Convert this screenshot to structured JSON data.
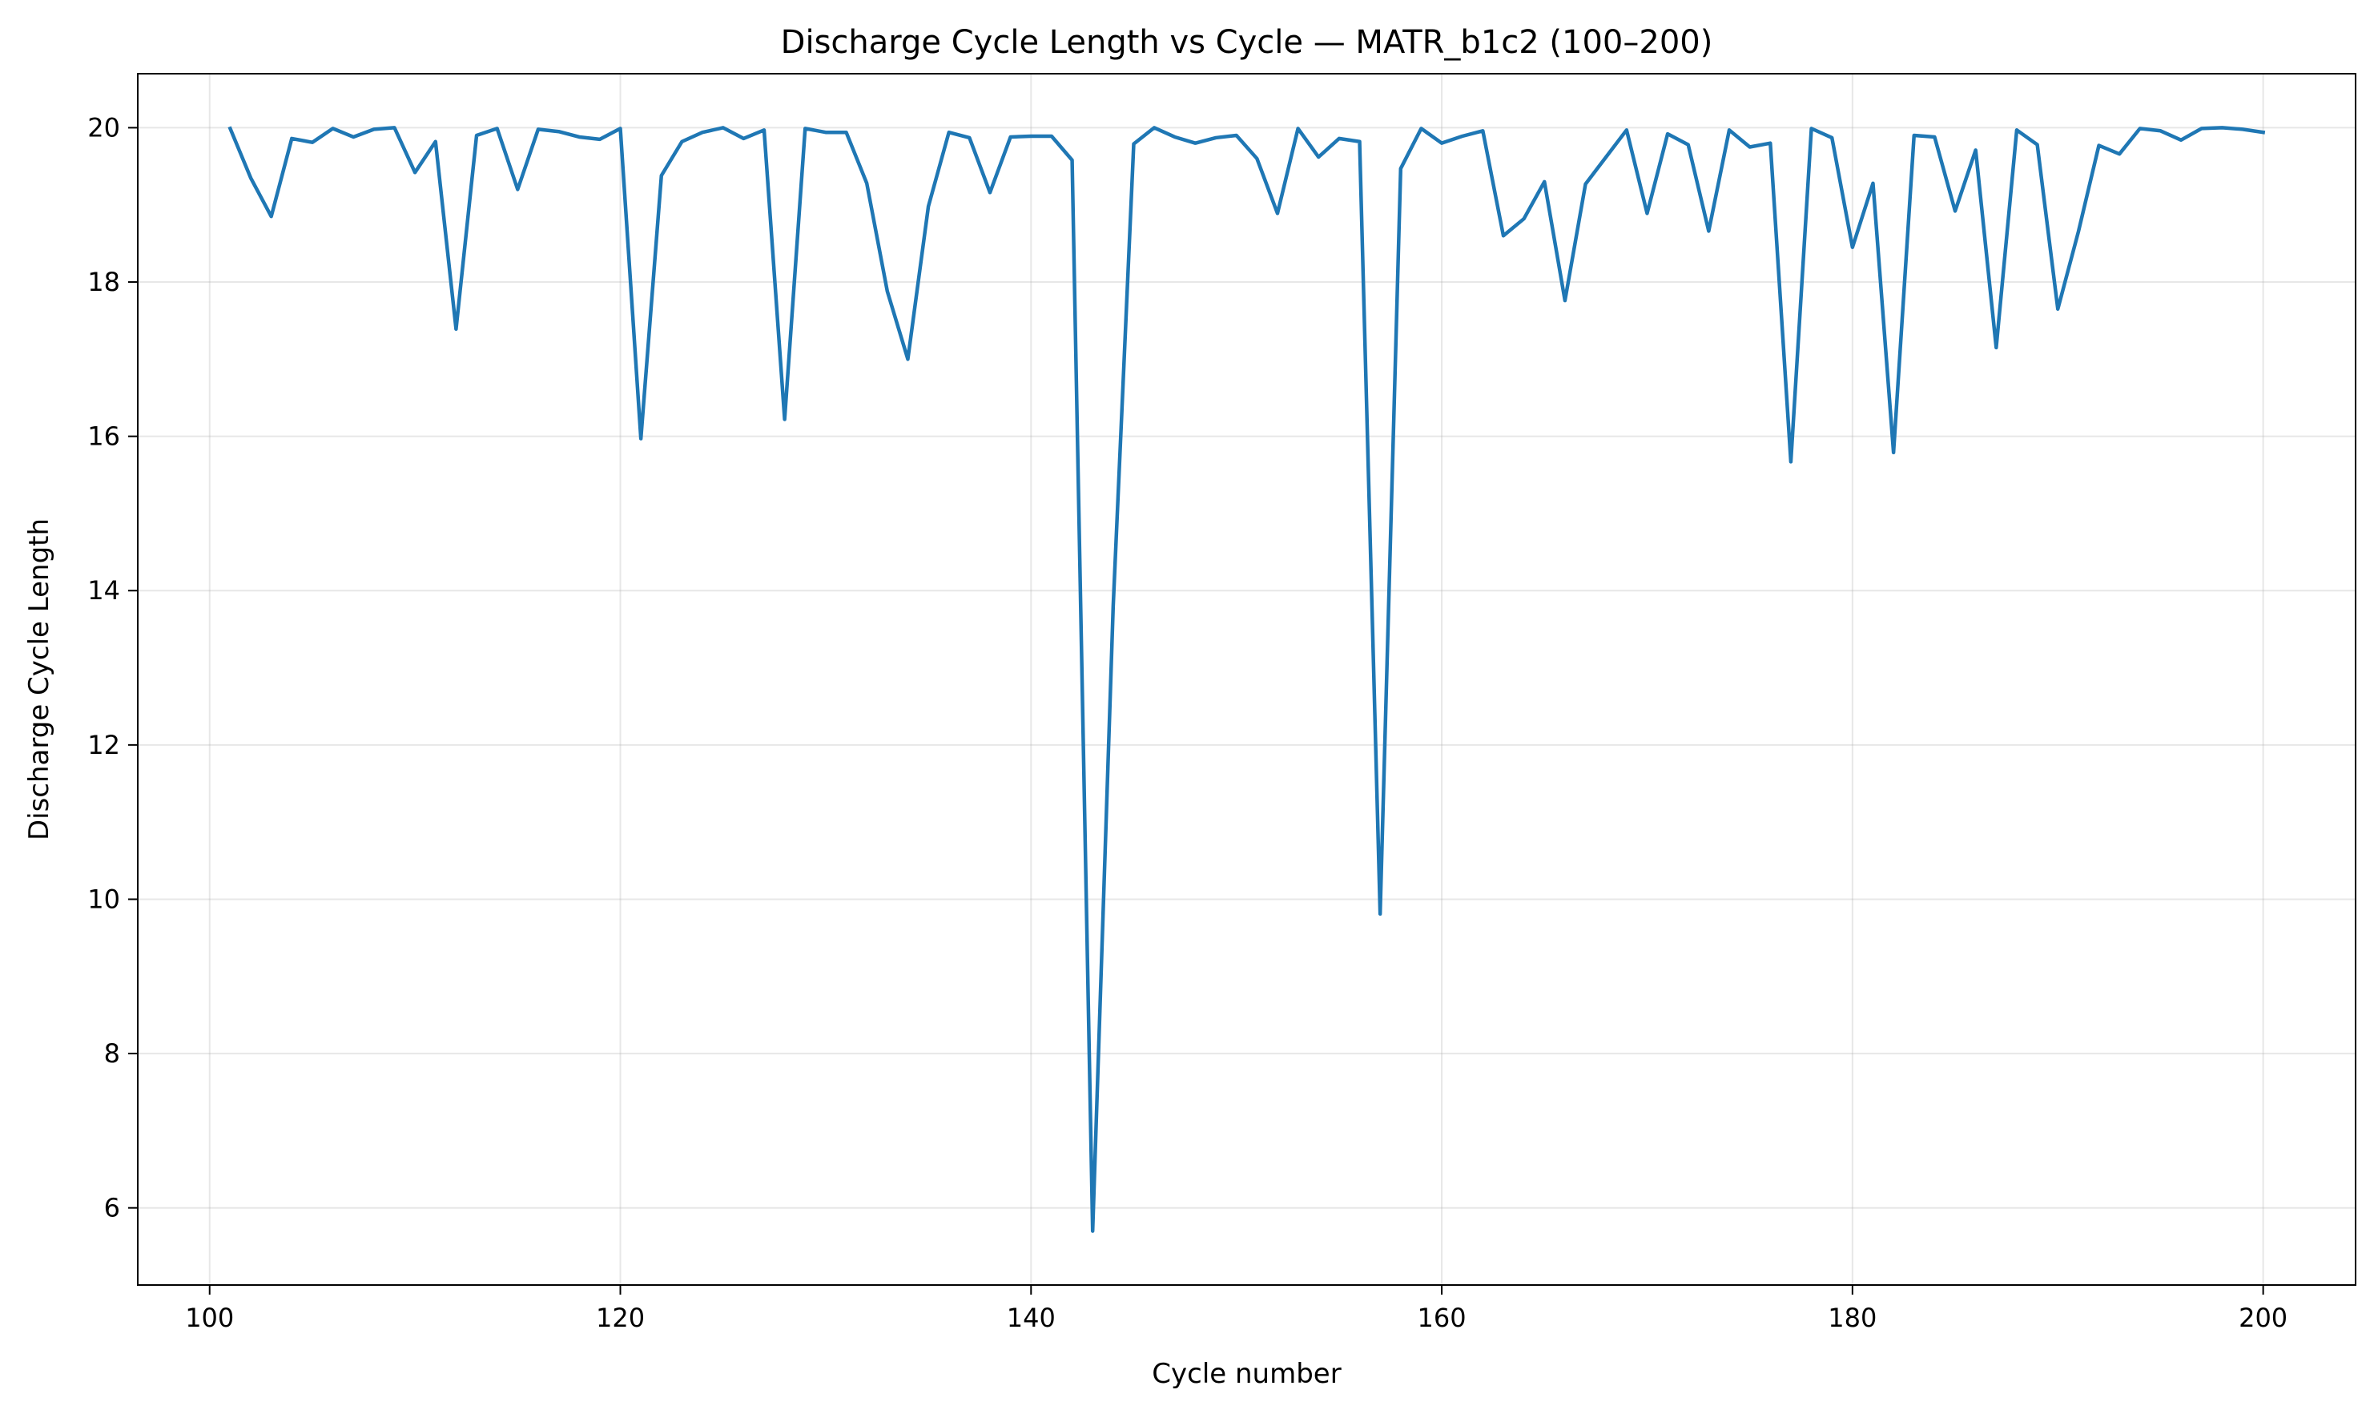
{
  "chart_data": {
    "type": "line",
    "title": "Discharge Cycle Length vs Cycle — MATR_b1c2 (100–200)",
    "xlabel": "Cycle number",
    "ylabel": "Discharge Cycle Length",
    "xlim": [
      96.5,
      204.5
    ],
    "ylim": [
      5.0,
      20.7
    ],
    "xticks": [
      100,
      120,
      140,
      160,
      180,
      200
    ],
    "yticks": [
      6,
      8,
      10,
      12,
      14,
      16,
      18,
      20
    ],
    "grid": true,
    "legend": "none",
    "line_color": "#1f77b4",
    "x": [
      101,
      102,
      103,
      104,
      105,
      106,
      107,
      108,
      109,
      110,
      111,
      112,
      113,
      114,
      115,
      116,
      117,
      118,
      119,
      120,
      121,
      122,
      123,
      124,
      125,
      126,
      127,
      128,
      129,
      130,
      131,
      132,
      133,
      134,
      135,
      136,
      137,
      138,
      139,
      140,
      141,
      142,
      143,
      144,
      145,
      146,
      147,
      148,
      149,
      150,
      151,
      152,
      153,
      154,
      155,
      156,
      157,
      158,
      159,
      160,
      161,
      162,
      163,
      164,
      165,
      166,
      167,
      168,
      169,
      170,
      171,
      172,
      173,
      174,
      175,
      176,
      177,
      178,
      179,
      180,
      181,
      182,
      183,
      184,
      185,
      186,
      187,
      188,
      189,
      190,
      191,
      192,
      193,
      194,
      195,
      196,
      197,
      198,
      199,
      200
    ],
    "series": [
      {
        "values": [
          19.99,
          19.35,
          18.85,
          19.86,
          19.81,
          19.99,
          19.88,
          19.98,
          20.0,
          19.42,
          19.82,
          17.39,
          19.9,
          19.99,
          19.2,
          19.98,
          19.95,
          19.88,
          19.85,
          19.99,
          15.97,
          19.38,
          19.82,
          19.94,
          20.0,
          19.86,
          19.97,
          16.22,
          19.99,
          19.94,
          19.94,
          19.28,
          17.88,
          17.0,
          18.98,
          19.94,
          19.87,
          19.16,
          19.88,
          19.89,
          19.89,
          19.58,
          5.7,
          13.8,
          19.79,
          20.0,
          19.88,
          19.8,
          19.87,
          19.9,
          19.6,
          18.89,
          19.99,
          19.62,
          19.86,
          19.82,
          9.81,
          19.47,
          19.99,
          19.8,
          19.89,
          19.96,
          18.6,
          18.82,
          19.3,
          17.76,
          19.27,
          19.62,
          19.97,
          18.89,
          19.92,
          19.78,
          18.66,
          19.97,
          19.75,
          19.8,
          15.67,
          19.99,
          19.87,
          18.45,
          19.28,
          15.79,
          19.9,
          19.88,
          18.92,
          19.71,
          17.15,
          19.97,
          19.78,
          17.65,
          18.65,
          19.77,
          19.66,
          19.99,
          19.96,
          19.84,
          19.99,
          20.0,
          19.98,
          19.94
        ]
      }
    ]
  }
}
